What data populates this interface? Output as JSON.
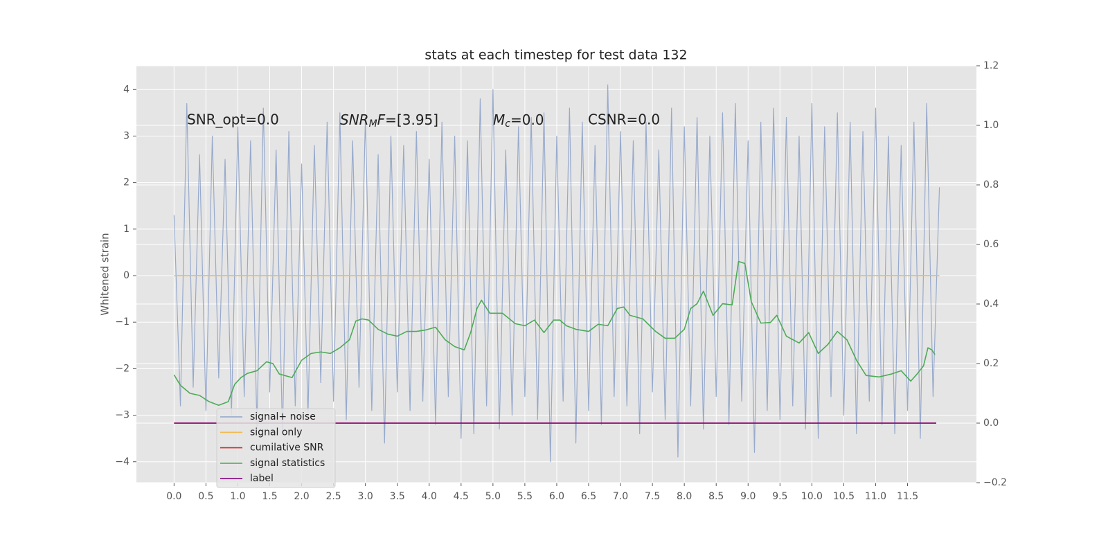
{
  "chart_data": {
    "type": "line",
    "title": "stats at each timestep for test data 132",
    "ylabel": "Whitened strain",
    "xlim": [
      -0.59,
      12.58
    ],
    "ylim": [
      -4.45,
      4.51
    ],
    "y2lim": [
      -0.2,
      1.2
    ],
    "xticks": [
      {
        "value": 0,
        "label": "0.0"
      },
      0.5,
      {
        "value": 1,
        "label": "1.0"
      },
      1.5,
      {
        "value": 2,
        "label": "2.0"
      },
      2.5,
      {
        "value": 3,
        "label": "3.0"
      },
      3.5,
      {
        "value": 4,
        "label": "4.0"
      },
      4.5,
      {
        "value": 5,
        "label": "5.0"
      },
      5.5,
      {
        "value": 6,
        "label": "6.0"
      },
      6.5,
      {
        "value": 7,
        "label": "7.0"
      },
      7.5,
      {
        "value": 8,
        "label": "8.0"
      },
      8.5,
      {
        "value": 9,
        "label": "9.0"
      },
      9.5,
      {
        "value": 10,
        "label": "10.0"
      },
      10.5,
      {
        "value": 11,
        "label": "11.0"
      },
      11.5
    ],
    "yticks": [
      {
        "value": -4,
        "label": "−4"
      },
      {
        "value": -3,
        "label": "−3"
      },
      {
        "value": -2,
        "label": "−2"
      },
      {
        "value": -1,
        "label": "−1"
      },
      0,
      1,
      2,
      3,
      4
    ],
    "y2ticks": [
      {
        "value": -0.2,
        "label": "−0.2"
      },
      {
        "value": 0,
        "label": "0.0"
      },
      0.2,
      0.4,
      0.6,
      0.8,
      {
        "value": 1,
        "label": "1.0"
      },
      1.2
    ],
    "grid": true,
    "annotations": [
      "SNR_opt=0.0",
      [
        "SNR",
        "M",
        "F",
        "=[3.95]"
      ],
      [
        "M",
        "c",
        "=0.0"
      ],
      "CSNR=0.0"
    ],
    "series": [
      {
        "name": "signal+ noise",
        "color": "#8fa3c9",
        "axis": "y",
        "x": [
          0.0,
          0.1,
          0.2,
          0.3,
          0.4,
          0.5,
          0.6,
          0.7,
          0.8,
          0.9,
          1.0,
          1.1,
          1.2,
          1.3,
          1.4,
          1.5,
          1.6,
          1.7,
          1.8,
          1.9,
          2.0,
          2.1,
          2.2,
          2.3,
          2.4,
          2.5,
          2.6,
          2.7,
          2.8,
          2.9,
          3.0,
          3.1,
          3.2,
          3.3,
          3.4,
          3.5,
          3.6,
          3.7,
          3.8,
          3.9,
          4.0,
          4.1,
          4.2,
          4.3,
          4.4,
          4.5,
          4.6,
          4.7,
          4.8,
          4.9,
          5.0,
          5.1,
          5.2,
          5.3,
          5.4,
          5.5,
          5.6,
          5.7,
          5.8,
          5.9,
          6.0,
          6.1,
          6.2,
          6.3,
          6.4,
          6.5,
          6.6,
          6.7,
          6.8,
          6.9,
          7.0,
          7.1,
          7.2,
          7.3,
          7.4,
          7.5,
          7.6,
          7.7,
          7.8,
          7.9,
          8.0,
          8.1,
          8.2,
          8.3,
          8.4,
          8.5,
          8.6,
          8.7,
          8.8,
          8.9,
          9.0,
          9.1,
          9.2,
          9.3,
          9.4,
          9.5,
          9.6,
          9.7,
          9.8,
          9.9,
          10.0,
          10.1,
          10.2,
          10.3,
          10.4,
          10.5,
          10.6,
          10.7,
          10.8,
          10.9,
          11.0,
          11.1,
          11.2,
          11.3,
          11.4,
          11.5,
          11.6,
          11.7,
          11.8,
          11.9,
          12.0
        ],
        "values": [
          1.3,
          -2.8,
          3.7,
          -2.4,
          2.6,
          -2.9,
          3.0,
          -2.2,
          2.5,
          -3.0,
          3.2,
          -2.6,
          2.9,
          -3.3,
          3.6,
          -2.5,
          2.7,
          -3.4,
          3.1,
          -2.8,
          2.4,
          -3.0,
          2.8,
          -2.3,
          3.3,
          -2.7,
          3.5,
          -3.1,
          2.9,
          -2.4,
          3.4,
          -2.9,
          2.6,
          -3.6,
          3.0,
          -2.5,
          2.8,
          -2.9,
          3.1,
          -2.7,
          2.5,
          -3.2,
          3.3,
          -2.6,
          3.0,
          -3.5,
          2.9,
          -3.4,
          3.8,
          -2.8,
          4.0,
          -3.3,
          2.7,
          -3.0,
          3.2,
          -2.6,
          3.4,
          -3.1,
          3.5,
          -4.0,
          3.0,
          -2.7,
          3.6,
          -3.6,
          3.3,
          -2.9,
          2.8,
          -3.2,
          4.1,
          -2.6,
          3.1,
          -2.8,
          2.9,
          -3.4,
          3.3,
          -2.5,
          2.7,
          -3.1,
          3.6,
          -3.9,
          3.2,
          -2.8,
          3.4,
          -3.3,
          3.0,
          -2.6,
          3.5,
          -3.2,
          3.7,
          -2.7,
          2.9,
          -3.8,
          3.3,
          -2.9,
          3.6,
          -3.1,
          3.4,
          -2.8,
          3.0,
          -3.3,
          3.7,
          -3.5,
          3.2,
          -2.6,
          3.5,
          -3.0,
          3.3,
          -3.4,
          3.1,
          -2.7,
          3.6,
          -3.2,
          3.0,
          -3.4,
          2.8,
          -2.9,
          3.3,
          -3.5,
          3.7,
          -2.6,
          1.9
        ]
      },
      {
        "name": "signal only",
        "color": "#f2b950",
        "axis": "y",
        "x": [
          0,
          12
        ],
        "values": [
          0,
          0
        ]
      },
      {
        "name": "cumilative SNR",
        "color": "#d62728",
        "axis": "y2",
        "x": [
          0,
          11.95
        ],
        "values": [
          0,
          0
        ]
      },
      {
        "name": "signal statistics",
        "color": "#4daa57",
        "axis": "y2",
        "x": [
          0,
          0.1,
          0.25,
          0.4,
          0.55,
          0.7,
          0.85,
          0.95,
          1.05,
          1.15,
          1.3,
          1.45,
          1.55,
          1.65,
          1.85,
          2.0,
          2.15,
          2.3,
          2.45,
          2.6,
          2.75,
          2.85,
          2.95,
          3.05,
          3.2,
          3.35,
          3.5,
          3.65,
          3.8,
          3.95,
          4.1,
          4.25,
          4.4,
          4.55,
          4.65,
          4.75,
          4.82,
          4.95,
          5.15,
          5.35,
          5.5,
          5.65,
          5.8,
          5.95,
          6.05,
          6.15,
          6.3,
          6.5,
          6.65,
          6.8,
          6.95,
          7.05,
          7.15,
          7.35,
          7.55,
          7.7,
          7.85,
          8.0,
          8.1,
          8.2,
          8.3,
          8.45,
          8.6,
          8.75,
          8.85,
          8.95,
          9.05,
          9.2,
          9.35,
          9.45,
          9.6,
          9.8,
          9.95,
          10.1,
          10.25,
          10.4,
          10.55,
          10.7,
          10.85,
          11.05,
          11.25,
          11.4,
          11.55,
          11.65,
          11.75,
          11.82,
          11.88,
          11.93
        ],
        "values": [
          0.162,
          0.127,
          0.1,
          0.093,
          0.072,
          0.06,
          0.072,
          0.13,
          0.153,
          0.167,
          0.176,
          0.206,
          0.2,
          0.165,
          0.153,
          0.211,
          0.234,
          0.239,
          0.234,
          0.253,
          0.28,
          0.343,
          0.35,
          0.346,
          0.315,
          0.299,
          0.292,
          0.308,
          0.308,
          0.313,
          0.322,
          0.28,
          0.257,
          0.246,
          0.304,
          0.385,
          0.413,
          0.369,
          0.369,
          0.334,
          0.327,
          0.346,
          0.304,
          0.346,
          0.346,
          0.327,
          0.315,
          0.308,
          0.332,
          0.327,
          0.385,
          0.39,
          0.362,
          0.35,
          0.308,
          0.285,
          0.285,
          0.315,
          0.385,
          0.401,
          0.443,
          0.362,
          0.401,
          0.397,
          0.543,
          0.536,
          0.408,
          0.336,
          0.338,
          0.362,
          0.292,
          0.269,
          0.304,
          0.234,
          0.264,
          0.308,
          0.28,
          0.211,
          0.16,
          0.155,
          0.165,
          0.176,
          0.141,
          0.165,
          0.192,
          0.253,
          0.246,
          0.23
        ]
      },
      {
        "name": "label",
        "color": "#800080",
        "axis": "y2",
        "x": [
          0,
          11.95
        ],
        "values": [
          0,
          0
        ]
      }
    ]
  }
}
